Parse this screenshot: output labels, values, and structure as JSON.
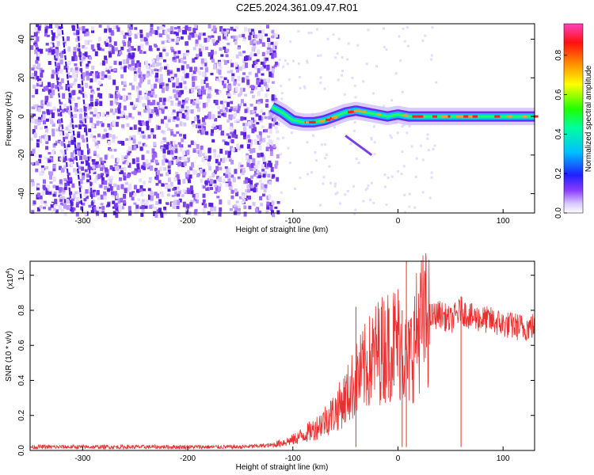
{
  "title": "C2E5.2024.361.09.47.R01",
  "chart_data": [
    {
      "type": "heatmap",
      "xlabel": "Height of straight line (km)",
      "ylabel": "Frequency (Hz)",
      "xlim": [
        -350,
        130
      ],
      "ylim": [
        -50,
        48
      ],
      "xticks": [
        -300,
        -200,
        -100,
        0,
        100
      ],
      "yticks": [
        -40,
        -20,
        0,
        20,
        40
      ],
      "colorbar": {
        "label": "Normalized spectral amplitude",
        "range": [
          0.0,
          0.96
        ],
        "ticks": [
          "0.0",
          "0.2",
          "0.4",
          "0.6",
          "0.8"
        ]
      },
      "ridge_track": {
        "x": [
          -120,
          -110,
          -100,
          -90,
          -80,
          -70,
          -60,
          -50,
          -40,
          -30,
          -20,
          -10,
          0,
          10,
          20,
          40,
          60,
          80,
          100,
          130
        ],
        "y": [
          5,
          2,
          -2,
          -3,
          -3,
          -2,
          0,
          2,
          3,
          2,
          1,
          0,
          1,
          0,
          0,
          0,
          0,
          0,
          0,
          0
        ]
      },
      "colors": {
        "noise": "#7b3fe8",
        "ridge": "#00c8ff",
        "peak": "#ff2020"
      }
    },
    {
      "type": "line",
      "xlabel": "Height of straight line (km)",
      "ylabel": "SNR (10 * v/v)",
      "ylabel_scale": "(x10",
      "ylabel_scale_exp": "4",
      "ylabel_scale_close": ")",
      "xlim": [
        -350,
        130
      ],
      "ylim": [
        0.0,
        1.08
      ],
      "xticks": [
        -300,
        -200,
        -100,
        0,
        100
      ],
      "yticks": [
        "0.0",
        "0.2",
        "0.4",
        "0.6",
        "0.8",
        "1.0"
      ],
      "series": [
        {
          "color": "#e83030",
          "x": [
            -350,
            -150,
            -120,
            -100,
            -80,
            -60,
            -50,
            -40,
            -30,
            -20,
            -10,
            0,
            5,
            10,
            20,
            30,
            40,
            50,
            60,
            70,
            80,
            90,
            100,
            110,
            120,
            130
          ],
          "y": [
            0.02,
            0.02,
            0.03,
            0.06,
            0.12,
            0.22,
            0.3,
            0.4,
            0.48,
            0.56,
            0.6,
            0.63,
            0.55,
            0.5,
            0.72,
            0.76,
            0.78,
            0.74,
            0.8,
            0.76,
            0.75,
            0.74,
            0.72,
            0.71,
            0.7,
            0.71
          ]
        }
      ],
      "spikes": [
        {
          "x": -40,
          "y": 0.82
        },
        {
          "x": 8,
          "y": 1.08
        },
        {
          "x": 4,
          "y": 0.8
        },
        {
          "x": 60,
          "y": 0.88
        }
      ]
    }
  ]
}
